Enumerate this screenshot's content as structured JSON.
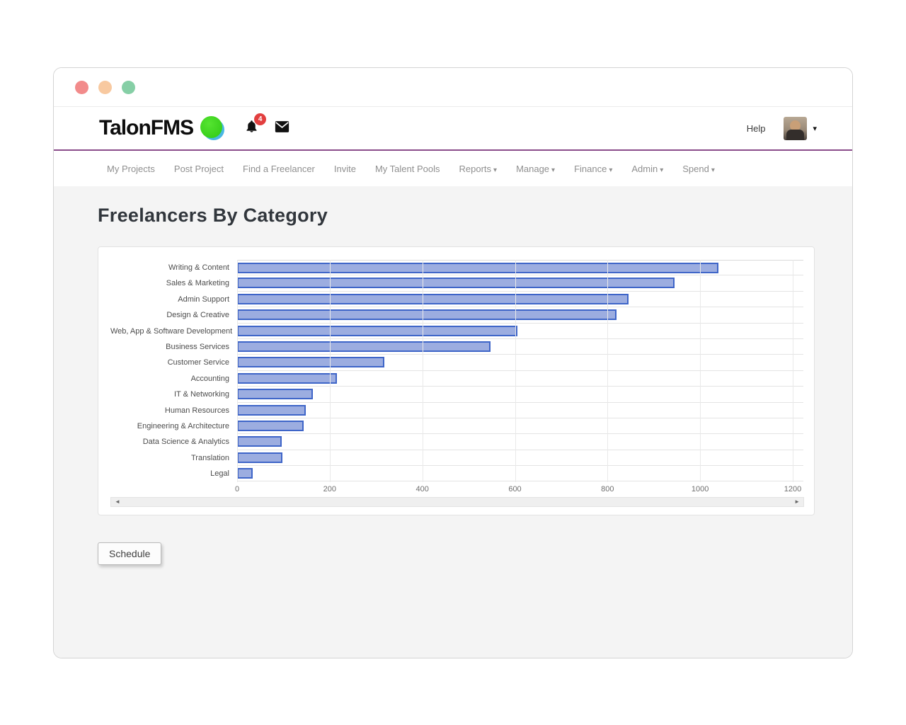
{
  "window": {
    "traffic_lights": [
      "#f28b8b",
      "#f8c9a0",
      "#86cfa6"
    ]
  },
  "header": {
    "logo_text": "TalonFMS",
    "notification_count": "4",
    "help_label": "Help"
  },
  "nav": {
    "items": [
      {
        "label": "My Projects",
        "dropdown": false
      },
      {
        "label": "Post Project",
        "dropdown": false
      },
      {
        "label": "Find a Freelancer",
        "dropdown": false
      },
      {
        "label": "Invite",
        "dropdown": false
      },
      {
        "label": "My Talent Pools",
        "dropdown": false
      },
      {
        "label": "Reports",
        "dropdown": true
      },
      {
        "label": "Manage",
        "dropdown": true
      },
      {
        "label": "Finance",
        "dropdown": true
      },
      {
        "label": "Admin",
        "dropdown": true
      },
      {
        "label": "Spend",
        "dropdown": true
      }
    ]
  },
  "main": {
    "title": "Freelancers By Category",
    "schedule_button_label": "Schedule"
  },
  "chart_data": {
    "type": "bar",
    "orientation": "horizontal",
    "title": "Freelancers By Category",
    "categories": [
      "Writing & Content",
      "Sales & Marketing",
      "Admin Support",
      "Design & Creative",
      "Web, App & Software Development",
      "Business Services",
      "Customer Service",
      "Accounting",
      "IT & Networking",
      "Human Resources",
      "Engineering & Architecture",
      "Data Science & Analytics",
      "Translation",
      "Legal"
    ],
    "values": [
      1040,
      945,
      845,
      820,
      605,
      548,
      318,
      216,
      163,
      148,
      144,
      97,
      98,
      34
    ],
    "xlabel": "",
    "ylabel": "",
    "xlim": [
      0,
      1200
    ],
    "xticks": [
      0,
      200,
      400,
      600,
      800,
      1000,
      1200
    ],
    "grid": true,
    "legend": "none",
    "bar_fill": "#9cade0",
    "bar_stroke": "#3e65c8"
  }
}
